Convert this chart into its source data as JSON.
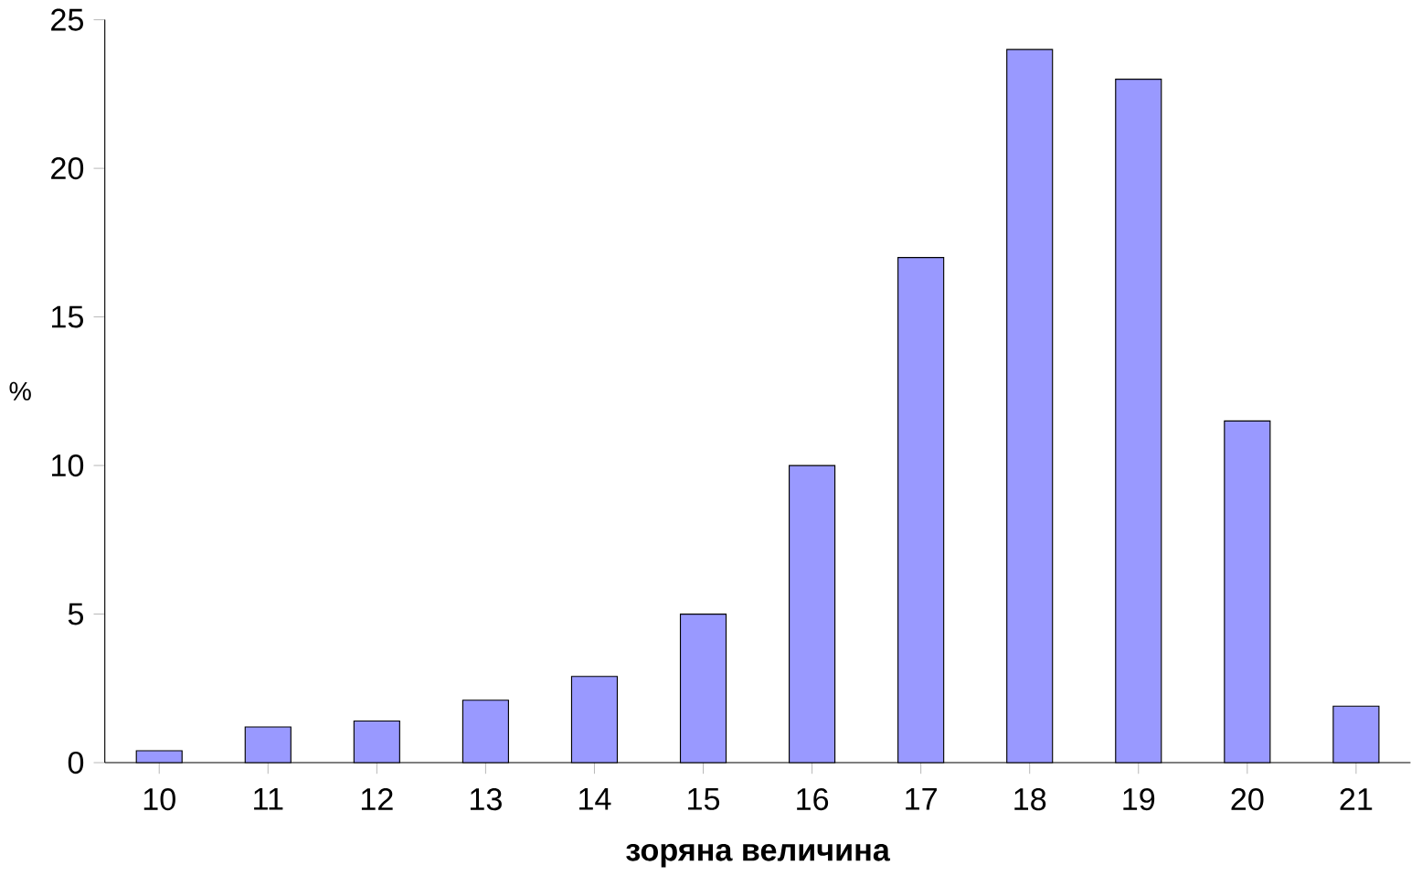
{
  "chart_data": {
    "type": "bar",
    "xlabel": "зоряна величина",
    "ylabel": "%",
    "categories": [
      "10",
      "11",
      "12",
      "13",
      "14",
      "15",
      "16",
      "17",
      "18",
      "19",
      "20",
      "21"
    ],
    "values": [
      0.4,
      1.2,
      1.4,
      2.1,
      2.9,
      5.0,
      10.0,
      17.0,
      24.0,
      23.0,
      11.5,
      1.9
    ],
    "color": "#9999ff",
    "ylim": [
      0,
      25
    ],
    "yticks": [
      0,
      5,
      10,
      15,
      20,
      25
    ],
    "grid": false
  }
}
